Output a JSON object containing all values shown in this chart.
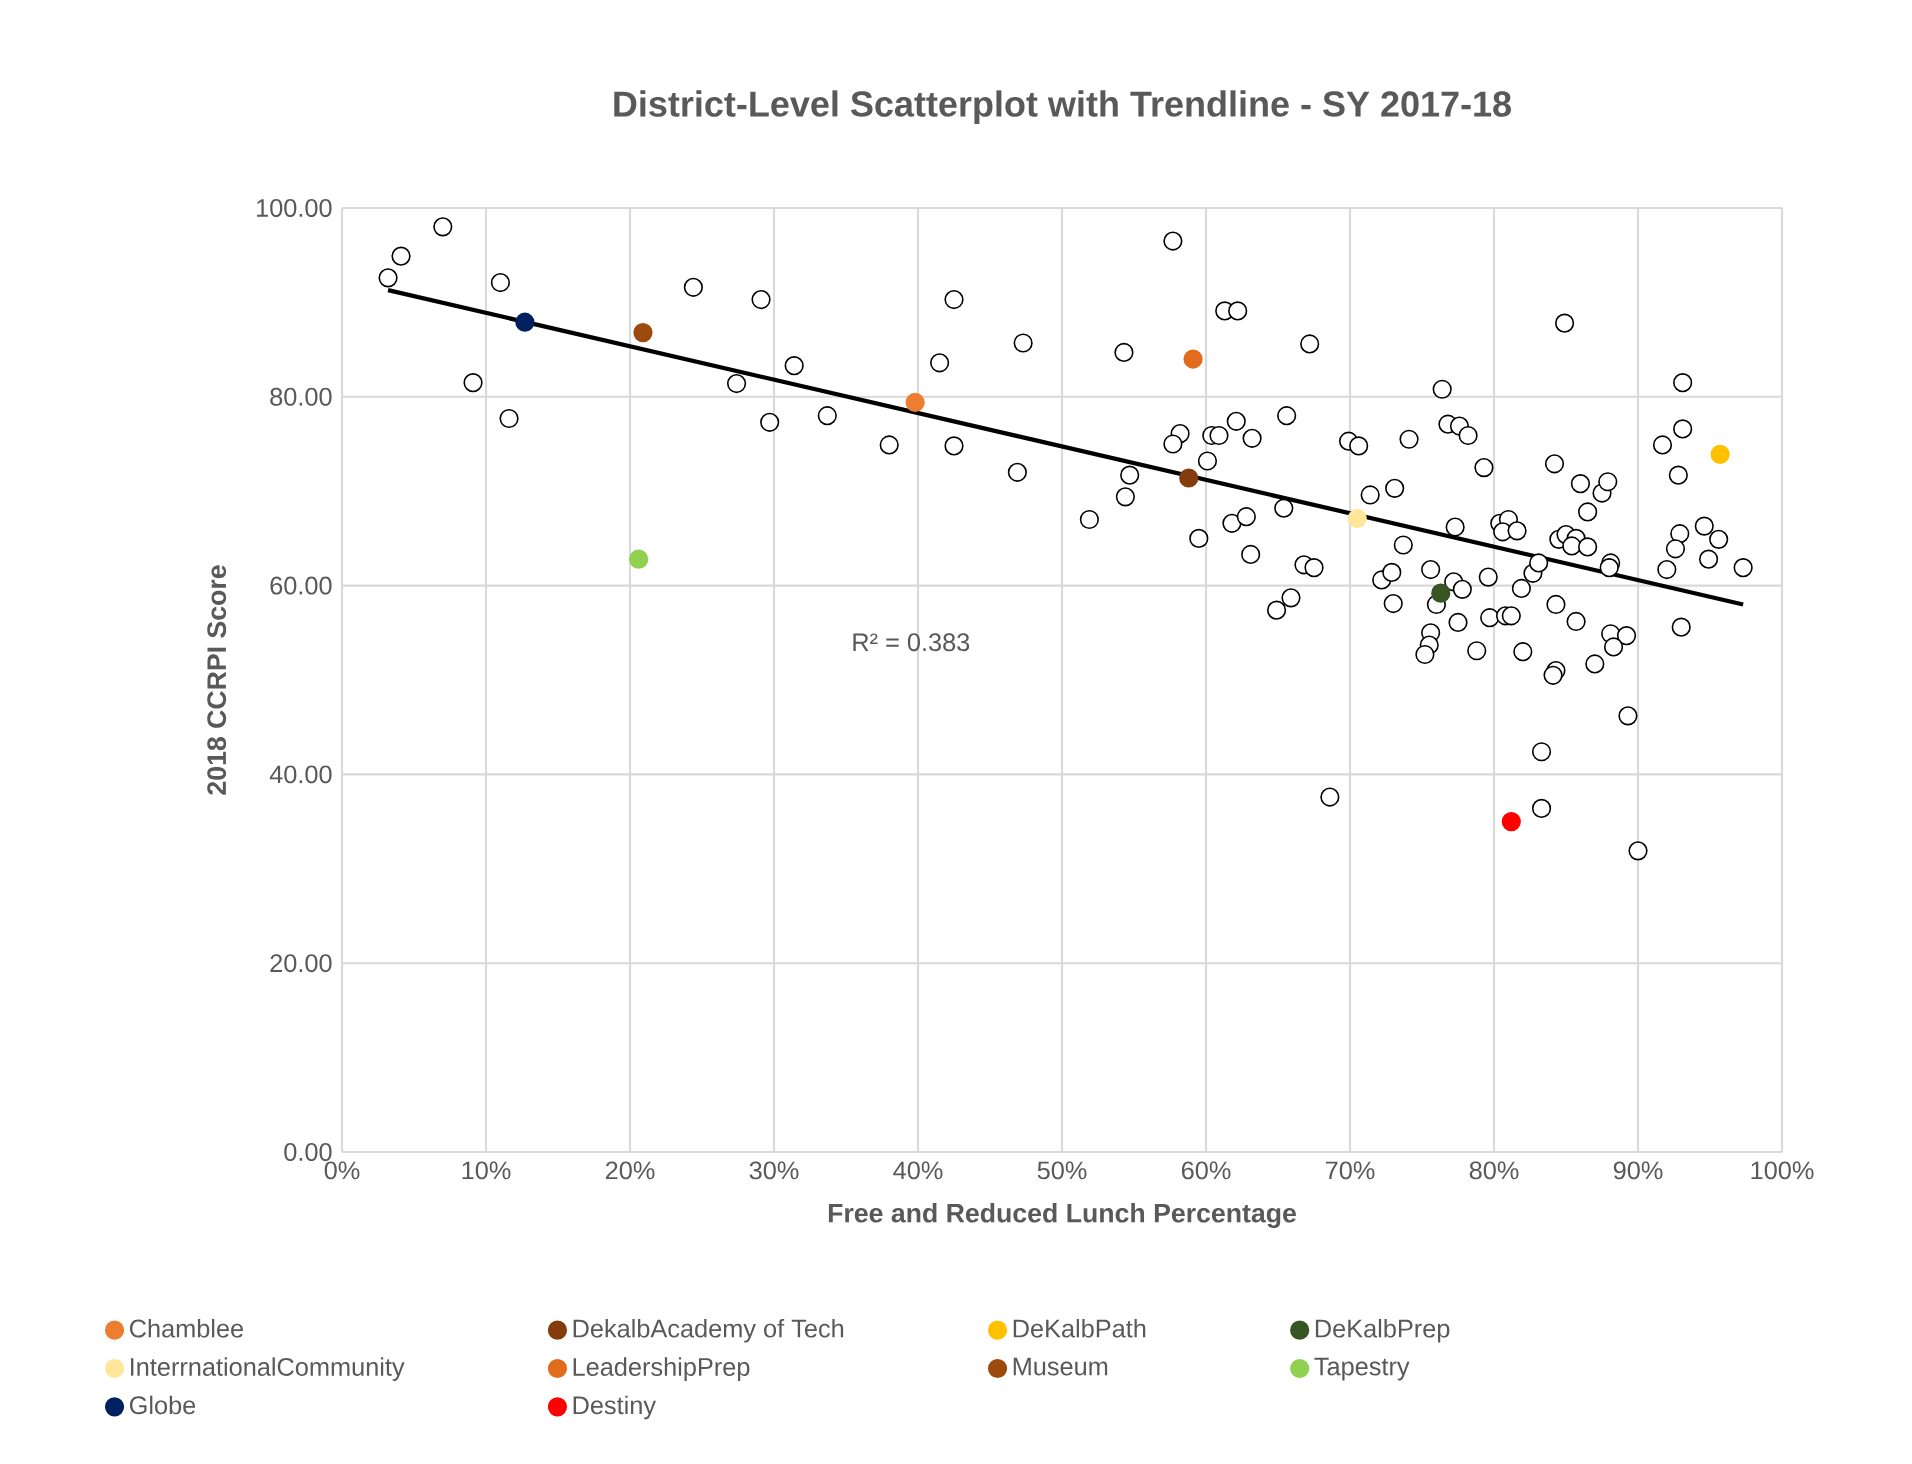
{
  "chart_data": {
    "type": "scatter",
    "title": "District-Level Scatterplot with Trendline - SY 2017-18",
    "xlabel": "Free and Reduced Lunch Percentage",
    "ylabel": "2018 CCRPI Score",
    "xlim": [
      0,
      100
    ],
    "ylim": [
      0,
      100
    ],
    "xticks": [
      {
        "value": 0,
        "label": "0%"
      },
      {
        "value": 10,
        "label": "10%"
      },
      {
        "value": 20,
        "label": "20%"
      },
      {
        "value": 30,
        "label": "30%"
      },
      {
        "value": 40,
        "label": "40%"
      },
      {
        "value": 50,
        "label": "50%"
      },
      {
        "value": 60,
        "label": "60%"
      },
      {
        "value": 70,
        "label": "70%"
      },
      {
        "value": 80,
        "label": "80%"
      },
      {
        "value": 90,
        "label": "90%"
      },
      {
        "value": 100,
        "label": "100%"
      }
    ],
    "yticks": [
      {
        "value": 0,
        "label": "0.00"
      },
      {
        "value": 20,
        "label": "20.00"
      },
      {
        "value": 40,
        "label": "40.00"
      },
      {
        "value": 60,
        "label": "60.00"
      },
      {
        "value": 80,
        "label": "80.00"
      },
      {
        "value": 100,
        "label": "100.00"
      }
    ],
    "grid": true,
    "legend": "bottom",
    "marker": "circle",
    "annotations": [
      "R² = 0.383"
    ],
    "series": [
      {
        "color": "#ffffff",
        "x": [
          3.2,
          4.1,
          7.0,
          11.0,
          9.1,
          11.6,
          24.4,
          29.1,
          27.4,
          31.4,
          29.7,
          33.7,
          38.0,
          41.5,
          42.5,
          42.5,
          47.3,
          46.9,
          57.7,
          54.3,
          61.3,
          62.2,
          67.2,
          84.9,
          93.1,
          76.4,
          58.2,
          57.7,
          60.4,
          60.9,
          62.1,
          63.2,
          65.6,
          60.1,
          54.7,
          54.4,
          51.9,
          59.5,
          61.8,
          62.8,
          63.1,
          65.4,
          66.8,
          67.5,
          64.9,
          65.9,
          69.9,
          70.6,
          74.1,
          71.4,
          73.1,
          73.7,
          72.2,
          72.9,
          73.0,
          75.6,
          77.2,
          77.8,
          76.0,
          77.5,
          76.8,
          77.6,
          78.2,
          79.3,
          77.3,
          79.6,
          80.4,
          81.0,
          80.6,
          81.6,
          81.9,
          82.7,
          83.1,
          79.7,
          80.8,
          81.2,
          84.2,
          86.0,
          87.5,
          87.9,
          86.5,
          84.5,
          85.0,
          85.7,
          85.4,
          86.5,
          88.1,
          88.0,
          84.3,
          85.7,
          91.7,
          93.1,
          92.8,
          92.9,
          92.6,
          92.0,
          94.6,
          95.6,
          94.9,
          97.3,
          93.0,
          88.1,
          89.2,
          75.6,
          75.5,
          75.2,
          78.8,
          82.0,
          84.3,
          84.1,
          87.0,
          88.3,
          89.3,
          83.3,
          68.6,
          83.3,
          90.0
        ],
        "values": [
          92.6,
          94.9,
          98.0,
          92.1,
          81.5,
          77.7,
          91.6,
          90.3,
          81.4,
          83.3,
          77.3,
          78.0,
          74.9,
          83.6,
          90.3,
          74.8,
          85.7,
          72.0,
          96.5,
          84.7,
          89.1,
          89.1,
          85.6,
          87.8,
          81.5,
          80.8,
          76.1,
          75.0,
          75.9,
          75.9,
          77.4,
          75.6,
          78.0,
          73.2,
          71.7,
          69.4,
          67.0,
          65.0,
          66.6,
          67.3,
          63.3,
          68.2,
          62.2,
          61.9,
          57.4,
          58.7,
          75.3,
          74.8,
          75.5,
          69.6,
          70.3,
          64.3,
          60.6,
          61.4,
          58.1,
          61.7,
          60.4,
          59.6,
          58.0,
          56.1,
          77.1,
          76.9,
          75.9,
          72.5,
          66.2,
          60.9,
          66.6,
          67.0,
          65.7,
          65.8,
          59.7,
          61.3,
          62.4,
          56.6,
          56.8,
          56.8,
          72.9,
          70.8,
          69.8,
          71.0,
          67.8,
          64.9,
          65.4,
          65.0,
          64.2,
          64.1,
          62.4,
          61.9,
          58.0,
          56.2,
          74.9,
          76.6,
          71.7,
          65.5,
          63.9,
          61.7,
          66.3,
          64.9,
          62.8,
          61.9,
          55.6,
          54.9,
          54.7,
          55.0,
          53.7,
          52.7,
          53.1,
          53.0,
          51.0,
          50.5,
          51.7,
          53.5,
          46.2,
          42.4,
          37.6,
          36.4,
          31.9
        ]
      },
      {
        "name": "Chamblee",
        "color": "#ed7d31",
        "x": [
          39.8
        ],
        "values": [
          79.4
        ]
      },
      {
        "name": "DekalbAcademy of Tech",
        "color": "#843c0c",
        "x": [
          58.8
        ],
        "values": [
          71.4
        ]
      },
      {
        "name": "DeKalbPath",
        "color": "#ffc000",
        "x": [
          95.7
        ],
        "values": [
          73.9
        ]
      },
      {
        "name": "DeKalbPrep",
        "color": "#375623",
        "x": [
          76.3
        ],
        "values": [
          59.2
        ]
      },
      {
        "name": "InterrnationalCommunity",
        "color": "#ffe699",
        "x": [
          70.5
        ],
        "values": [
          67.1
        ]
      },
      {
        "name": "LeadershipPrep",
        "color": "#e06c1c",
        "x": [
          59.1
        ],
        "values": [
          84.0
        ]
      },
      {
        "name": "Museum",
        "color": "#9c4a0e",
        "x": [
          20.9
        ],
        "values": [
          86.8
        ]
      },
      {
        "name": "Tapestry",
        "color": "#92d050",
        "x": [
          20.6
        ],
        "values": [
          62.8
        ]
      },
      {
        "name": "Globe",
        "color": "#002060",
        "x": [
          12.7
        ],
        "values": [
          87.9
        ]
      },
      {
        "name": "Destiny",
        "color": "#ff0000",
        "x": [
          81.2
        ],
        "values": [
          35.0
        ]
      },
      {
        "type": "line",
        "color": "#000000",
        "line_style": "solid",
        "marker": "none",
        "x": [
          3.2,
          97.3
        ],
        "values": [
          91.3,
          58.0
        ]
      }
    ]
  }
}
